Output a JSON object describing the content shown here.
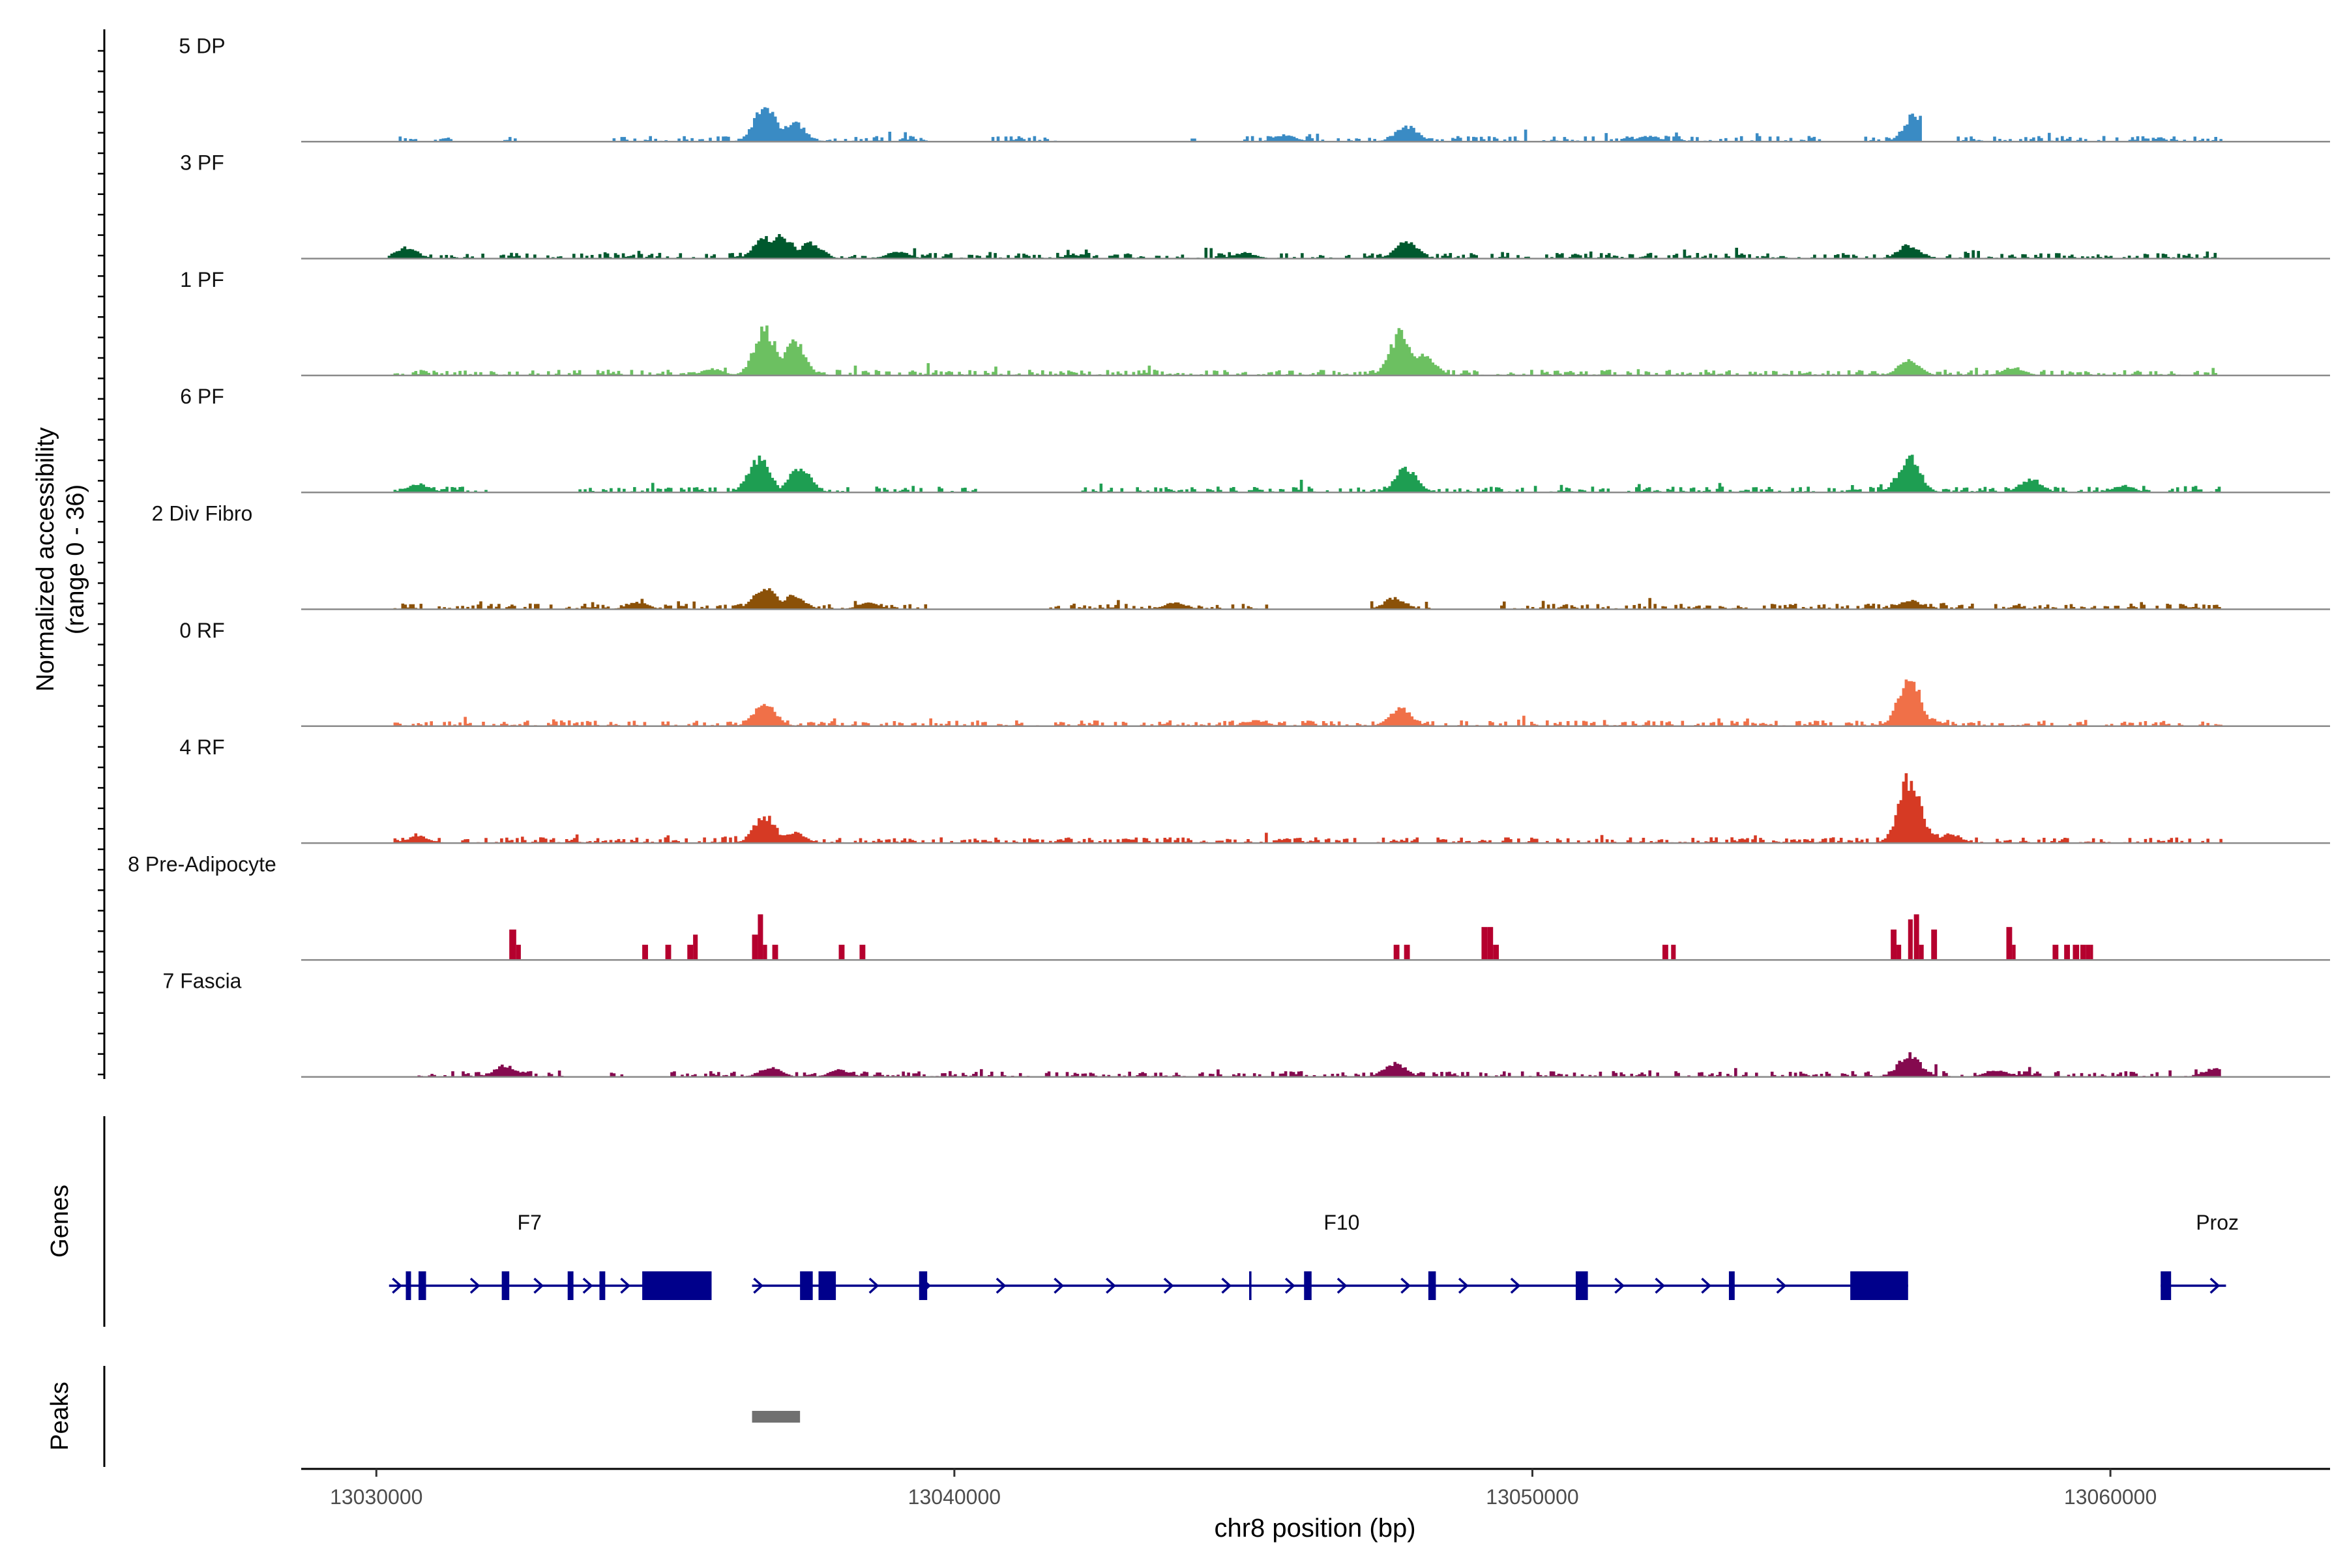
{
  "chart_data": {
    "type": "area",
    "title": "",
    "region": "chr8",
    "x_range": [
      13028700,
      13063800
    ],
    "y_label": [
      "Normalized accessibility",
      "(range 0 - 36)"
    ],
    "ylim": [
      0,
      36
    ],
    "x_label": "chr8 position (bp)",
    "x_ticks": [
      13030000,
      13040000,
      13050000,
      13060000
    ],
    "x_tick_labels": [
      "13030000",
      "13040000",
      "13050000",
      "13060000"
    ],
    "panel_labels": {
      "genes": "Genes",
      "peaks": "Peaks"
    },
    "series": [
      {
        "name": "5 DP",
        "color": "#3a8bc4",
        "style": "dense",
        "peaks": [
          [
            13036700,
            16
          ],
          [
            13037200,
            9
          ],
          [
            13047800,
            7
          ],
          [
            13056600,
            12
          ],
          [
            13033500,
            3
          ],
          [
            13045700,
            3
          ],
          [
            13052000,
            2.5
          ]
        ],
        "windows": [
          [
            13030300,
            13030700
          ],
          [
            13031000,
            13031300
          ],
          [
            13032200,
            13032600
          ],
          [
            13034000,
            13039500
          ],
          [
            13040600,
            13041800
          ],
          [
            13044000,
            13044300
          ],
          [
            13045000,
            13055000
          ],
          [
            13055700,
            13056700
          ],
          [
            13057300,
            13061900
          ]
        ]
      },
      {
        "name": "3 PF",
        "color": "#00592e",
        "style": "dense",
        "peaks": [
          [
            13030500,
            5
          ],
          [
            13036700,
            9
          ],
          [
            13037000,
            10
          ],
          [
            13037500,
            7
          ],
          [
            13047800,
            8
          ],
          [
            13056500,
            6
          ],
          [
            13039000,
            3
          ],
          [
            13045000,
            2.5
          ]
        ],
        "windows": [
          [
            13030200,
            13061900
          ]
        ]
      },
      {
        "name": "1 PF",
        "color": "#6cc061",
        "style": "dense",
        "peaks": [
          [
            13036700,
            21
          ],
          [
            13037200,
            16
          ],
          [
            13047700,
            19
          ],
          [
            13048100,
            10
          ],
          [
            13056500,
            7
          ],
          [
            13058300,
            3.5
          ],
          [
            13035800,
            3
          ]
        ],
        "windows": [
          [
            13030300,
            13062000
          ]
        ]
      },
      {
        "name": "6 PF",
        "color": "#1e9e52",
        "style": "dense",
        "peaks": [
          [
            13036600,
            15
          ],
          [
            13037300,
            11
          ],
          [
            13047800,
            11
          ],
          [
            13056500,
            16
          ],
          [
            13058600,
            6
          ],
          [
            13060200,
            3
          ],
          [
            13030700,
            4
          ]
        ],
        "windows": [
          [
            13030300,
            13032000
          ],
          [
            13033500,
            13038200
          ],
          [
            13038500,
            13040400
          ],
          [
            13042200,
            13051300
          ],
          [
            13051600,
            13061900
          ]
        ]
      },
      {
        "name": "2 Div Fibro",
        "color": "#8b5108",
        "style": "dense",
        "peaks": [
          [
            13036700,
            10
          ],
          [
            13037200,
            6
          ],
          [
            13047600,
            5
          ],
          [
            13056500,
            4
          ],
          [
            13043800,
            3
          ],
          [
            13034500,
            3
          ],
          [
            13038500,
            3
          ]
        ],
        "windows": [
          [
            13030300,
            13039500
          ],
          [
            13041600,
            13045500
          ],
          [
            13047200,
            13048200
          ],
          [
            13049400,
            13061900
          ]
        ]
      },
      {
        "name": "0 RF",
        "color": "#f07048",
        "style": "dense",
        "peaks": [
          [
            13036700,
            11
          ],
          [
            13047700,
            8
          ],
          [
            13056500,
            22
          ],
          [
            13056800,
            4
          ],
          [
            13045200,
            2.5
          ]
        ],
        "windows": [
          [
            13030300,
            13061900
          ]
        ]
      },
      {
        "name": "4 RF",
        "color": "#d63a24",
        "style": "dense",
        "peaks": [
          [
            13036700,
            12
          ],
          [
            13037200,
            5
          ],
          [
            13056500,
            29
          ],
          [
            13056800,
            6
          ],
          [
            13057200,
            4
          ],
          [
            13030700,
            3
          ]
        ],
        "windows": [
          [
            13030300,
            13061900
          ]
        ]
      },
      {
        "name": "8 Pre-Adipocyte",
        "color": "#b5002e",
        "style": "bars",
        "bars": [
          [
            13032300,
            13032420,
            12
          ],
          [
            13032420,
            13032500,
            6
          ],
          [
            13034600,
            13034700,
            6
          ],
          [
            13035000,
            13035100,
            6
          ],
          [
            13035380,
            13035480,
            6
          ],
          [
            13035480,
            13035560,
            10
          ],
          [
            13036500,
            13036600,
            10
          ],
          [
            13036600,
            13036690,
            18
          ],
          [
            13036690,
            13036760,
            6
          ],
          [
            13036850,
            13036950,
            6
          ],
          [
            13038000,
            13038100,
            6
          ],
          [
            13038360,
            13038460,
            6
          ],
          [
            13047600,
            13047700,
            6
          ],
          [
            13047780,
            13047880,
            6
          ],
          [
            13049120,
            13049220,
            13
          ],
          [
            13049220,
            13049320,
            13
          ],
          [
            13049320,
            13049420,
            6
          ],
          [
            13052250,
            13052350,
            6
          ],
          [
            13052400,
            13052480,
            6
          ],
          [
            13056200,
            13056300,
            12
          ],
          [
            13056300,
            13056380,
            6
          ],
          [
            13056500,
            13056580,
            16
          ],
          [
            13056600,
            13056690,
            18
          ],
          [
            13056690,
            13056770,
            6
          ],
          [
            13056900,
            13057000,
            12
          ],
          [
            13058200,
            13058300,
            13
          ],
          [
            13058300,
            13058360,
            6
          ],
          [
            13059000,
            13059100,
            6
          ],
          [
            13059200,
            13059300,
            6
          ],
          [
            13059350,
            13059460,
            6
          ],
          [
            13059480,
            13059580,
            6
          ],
          [
            13059580,
            13059650,
            6
          ],
          [
            13059650,
            13059700,
            6
          ]
        ]
      },
      {
        "name": "7 Fascia",
        "color": "#850a4f",
        "style": "dense",
        "peaks": [
          [
            13056500,
            10
          ],
          [
            13047600,
            6
          ],
          [
            13032200,
            5
          ],
          [
            13036800,
            4
          ],
          [
            13038000,
            3
          ],
          [
            13058000,
            3
          ],
          [
            13061800,
            4
          ]
        ],
        "windows": [
          [
            13030400,
            13033200
          ],
          [
            13034000,
            13034300
          ],
          [
            13035000,
            13061900
          ]
        ]
      }
    ],
    "genes": [
      {
        "name": "F7",
        "label_pos": 13032650,
        "line": [
          13030220,
          13035800
        ],
        "arrows": [
          13030350,
          13031700,
          13032800,
          13033650,
          13034300
        ],
        "exons": [
          [
            13030510,
            13030600
          ],
          [
            13030730,
            13030860
          ],
          [
            13032170,
            13032300
          ],
          [
            13033310,
            13033410
          ],
          [
            13033860,
            13033960
          ],
          [
            13034600,
            13035800
          ]
        ]
      },
      {
        "name": "F10",
        "label_pos": 13046700,
        "line": [
          13036500,
          13056500
        ],
        "arrows": [
          13036600,
          13038600,
          13039500,
          13040800,
          13041800,
          13042700,
          13043700,
          13044700,
          13045800,
          13046700,
          13047800,
          13048800,
          13049700,
          13051500,
          13052200,
          13053000,
          13054300
        ],
        "exons": [
          [
            13037330,
            13037550
          ],
          [
            13037650,
            13037950
          ],
          [
            13039390,
            13039530
          ],
          [
            13045100,
            13045140
          ],
          [
            13046050,
            13046180
          ],
          [
            13048200,
            13048330
          ],
          [
            13050750,
            13050960
          ],
          [
            13053400,
            13053500
          ],
          [
            13055500,
            13056500
          ]
        ]
      },
      {
        "name": "Proz",
        "label_pos": 13061850,
        "line": [
          13060870,
          13062000
        ],
        "arrows": [
          13061800
        ],
        "exons": [
          [
            13060870,
            13061050
          ]
        ]
      }
    ],
    "peak_regions": [
      [
        13036500,
        13037330
      ]
    ]
  }
}
